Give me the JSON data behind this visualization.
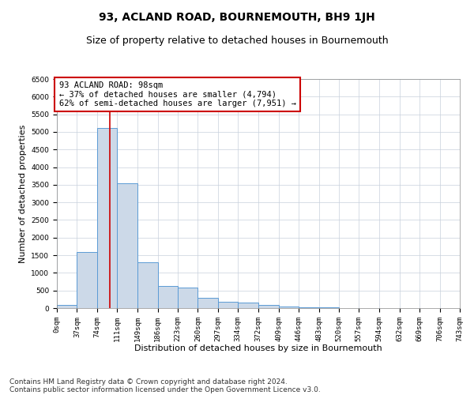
{
  "title": "93, ACLAND ROAD, BOURNEMOUTH, BH9 1JH",
  "subtitle": "Size of property relative to detached houses in Bournemouth",
  "xlabel": "Distribution of detached houses by size in Bournemouth",
  "ylabel": "Number of detached properties",
  "bin_edges": [
    0,
    37,
    74,
    111,
    149,
    186,
    223,
    260,
    297,
    334,
    372,
    409,
    446,
    483,
    520,
    557,
    594,
    632,
    669,
    706,
    743
  ],
  "bin_labels": [
    "0sqm",
    "37sqm",
    "74sqm",
    "111sqm",
    "149sqm",
    "186sqm",
    "223sqm",
    "260sqm",
    "297sqm",
    "334sqm",
    "372sqm",
    "409sqm",
    "446sqm",
    "483sqm",
    "520sqm",
    "557sqm",
    "594sqm",
    "632sqm",
    "669sqm",
    "706sqm",
    "743sqm"
  ],
  "counts": [
    80,
    1600,
    5100,
    3550,
    1300,
    620,
    580,
    300,
    170,
    150,
    80,
    50,
    30,
    20,
    10,
    5,
    5,
    5,
    5,
    5
  ],
  "bar_color": "#ccd9e8",
  "bar_edge_color": "#5b9bd5",
  "property_line_x": 98,
  "property_line_color": "#cc0000",
  "annotation_text": "93 ACLAND ROAD: 98sqm\n← 37% of detached houses are smaller (4,794)\n62% of semi-detached houses are larger (7,951) →",
  "annotation_box_color": "#cc0000",
  "ylim": [
    0,
    6500
  ],
  "yticks": [
    0,
    500,
    1000,
    1500,
    2000,
    2500,
    3000,
    3500,
    4000,
    4500,
    5000,
    5500,
    6000,
    6500
  ],
  "background_color": "#ffffff",
  "grid_color": "#c8d0dc",
  "footer_line1": "Contains HM Land Registry data © Crown copyright and database right 2024.",
  "footer_line2": "Contains public sector information licensed under the Open Government Licence v3.0.",
  "title_fontsize": 10,
  "subtitle_fontsize": 9,
  "xlabel_fontsize": 8,
  "ylabel_fontsize": 8,
  "tick_fontsize": 6.5,
  "annotation_fontsize": 7.5,
  "footer_fontsize": 6.5
}
